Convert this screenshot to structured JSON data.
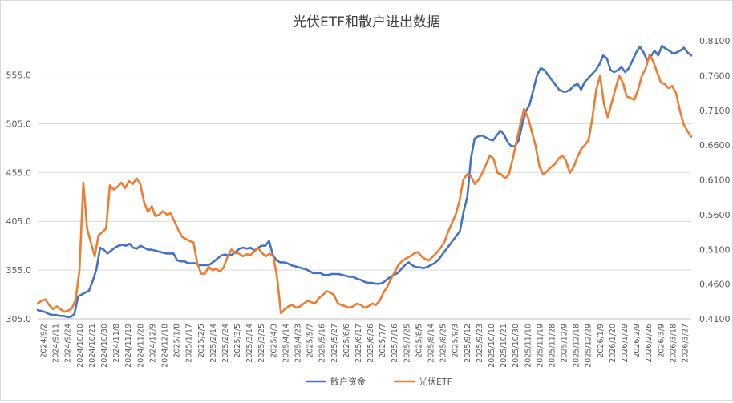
{
  "chart_data": {
    "type": "line",
    "title": "光伏ETF和散户进出数据",
    "dual_axis": true,
    "y_left": {
      "ticks": [
        "305.0",
        "355.0",
        "405.0",
        "455.0",
        "505.0",
        "555.0"
      ],
      "tick_values": [
        305,
        355,
        405,
        455,
        505,
        555
      ],
      "range": [
        305,
        590
      ]
    },
    "y_right": {
      "ticks": [
        "0.4100",
        "0.4600",
        "0.5100",
        "0.5600",
        "0.6100",
        "0.6600",
        "0.7100",
        "0.7600",
        "0.8100"
      ],
      "tick_values": [
        0.41,
        0.46,
        0.51,
        0.56,
        0.61,
        0.66,
        0.71,
        0.76,
        0.81
      ],
      "range": [
        0.41,
        0.81
      ]
    },
    "x_tick_labels": [
      "2024/9/2",
      "2024/9/11",
      "2024/9/24",
      "2024/10/10",
      "2024/10/21",
      "2024/10/30",
      "2024/11/8",
      "2024/11/19",
      "2024/11/28",
      "2024/12/9",
      "2024/12/18",
      "2025/1/8",
      "2025/1/17",
      "2025/2/5",
      "2025/2/14",
      "2025/2/24",
      "2025/3/5",
      "2025/3/14",
      "2025/3/25",
      "2025/4/3",
      "2025/4/14",
      "2025/4/23",
      "2025/5/7",
      "2025/5/16",
      "2025/5/27",
      "2025/6/6",
      "2025/6/17",
      "2025/6/26",
      "2025/7/7",
      "2025/7/16",
      "2025/7/25",
      "2025/8/5",
      "2025/8/14",
      "2025/8/25",
      "2025/9/3",
      "2025/9/12",
      "2025/9/23",
      "2025/10/10",
      "2025/10/21",
      "2025/10/30",
      "2025/11/10",
      "2025/11/19",
      "2025/11/28",
      "2025/12/9",
      "2025/12/18",
      "2025/12/29",
      "2026/1/9",
      "2026/1/20",
      "2026/1/29",
      "2026/2/9",
      "2026/2/26",
      "2026/3/9",
      "2026/3/18",
      "2026/3/27"
    ],
    "series": [
      {
        "name": "散户资金",
        "axis": "left",
        "color": "#4472c4",
        "values": [
          314,
          313,
          312,
          310,
          309,
          309,
          308,
          308,
          307,
          307,
          310,
          328,
          330,
          332,
          334,
          344,
          356,
          378,
          376,
          372,
          375,
          378,
          380,
          381,
          380,
          382,
          378,
          377,
          380,
          378,
          376,
          376,
          375,
          374,
          373,
          372,
          372,
          372,
          365,
          364,
          364,
          362,
          362,
          362,
          360,
          360,
          360,
          361,
          364,
          367,
          370,
          371,
          370,
          371,
          374,
          377,
          378,
          377,
          378,
          375,
          378,
          380,
          380,
          385,
          371,
          365,
          363,
          363,
          362,
          360,
          359,
          358,
          357,
          356,
          354,
          352,
          352,
          352,
          350,
          350,
          351,
          351,
          351,
          350,
          349,
          348,
          348,
          346,
          345,
          343,
          342,
          342,
          341,
          341,
          342,
          345,
          348,
          350,
          352,
          356,
          360,
          363,
          360,
          358,
          358,
          357,
          358,
          360,
          362,
          365,
          370,
          375,
          380,
          385,
          390,
          395,
          415,
          430,
          470,
          490,
          492,
          493,
          491,
          489,
          488,
          493,
          498,
          494,
          486,
          482,
          482,
          488,
          505,
          518,
          525,
          540,
          555,
          562,
          560,
          555,
          550,
          545,
          540,
          538,
          538,
          540,
          544,
          546,
          540,
          548,
          552,
          556,
          560,
          566,
          575,
          572,
          560,
          558,
          560,
          563,
          558,
          562,
          570,
          578,
          584,
          578,
          570,
          574,
          580,
          575,
          585,
          582,
          580,
          577,
          578,
          580,
          583,
          578,
          575
        ]
      },
      {
        "name": "光伏ETF",
        "axis": "right",
        "color": "#ed7d31",
        "values": [
          0.432,
          0.436,
          0.438,
          0.43,
          0.424,
          0.428,
          0.424,
          0.42,
          0.422,
          0.425,
          0.438,
          0.48,
          0.606,
          0.54,
          0.52,
          0.5,
          0.53,
          0.535,
          0.54,
          0.602,
          0.596,
          0.6,
          0.606,
          0.598,
          0.608,
          0.604,
          0.612,
          0.604,
          0.578,
          0.564,
          0.572,
          0.558,
          0.56,
          0.565,
          0.56,
          0.562,
          0.55,
          0.538,
          0.528,
          0.525,
          0.522,
          0.52,
          0.49,
          0.475,
          0.475,
          0.485,
          0.48,
          0.482,
          0.478,
          0.485,
          0.5,
          0.51,
          0.505,
          0.504,
          0.5,
          0.503,
          0.502,
          0.507,
          0.512,
          0.505,
          0.5,
          0.504,
          0.5,
          0.47,
          0.418,
          0.424,
          0.428,
          0.43,
          0.426,
          0.428,
          0.432,
          0.436,
          0.434,
          0.432,
          0.44,
          0.444,
          0.45,
          0.448,
          0.444,
          0.432,
          0.43,
          0.428,
          0.426,
          0.428,
          0.432,
          0.43,
          0.426,
          0.428,
          0.432,
          0.43,
          0.436,
          0.448,
          0.456,
          0.468,
          0.478,
          0.488,
          0.494,
          0.497,
          0.5,
          0.504,
          0.506,
          0.5,
          0.496,
          0.494,
          0.5,
          0.505,
          0.512,
          0.52,
          0.535,
          0.548,
          0.56,
          0.58,
          0.61,
          0.618,
          0.615,
          0.604,
          0.61,
          0.62,
          0.632,
          0.645,
          0.64,
          0.62,
          0.618,
          0.612,
          0.618,
          0.64,
          0.665,
          0.69,
          0.712,
          0.7,
          0.68,
          0.66,
          0.63,
          0.618,
          0.622,
          0.628,
          0.632,
          0.64,
          0.645,
          0.638,
          0.62,
          0.628,
          0.642,
          0.654,
          0.66,
          0.668,
          0.7,
          0.74,
          0.76,
          0.72,
          0.7,
          0.72,
          0.74,
          0.76,
          0.75,
          0.73,
          0.728,
          0.725,
          0.74,
          0.76,
          0.77,
          0.79,
          0.78,
          0.765,
          0.75,
          0.748,
          0.742,
          0.745,
          0.735,
          0.71,
          0.69,
          0.68,
          0.672
        ]
      }
    ],
    "legend_position": "bottom-center",
    "grid": "horizontal"
  }
}
